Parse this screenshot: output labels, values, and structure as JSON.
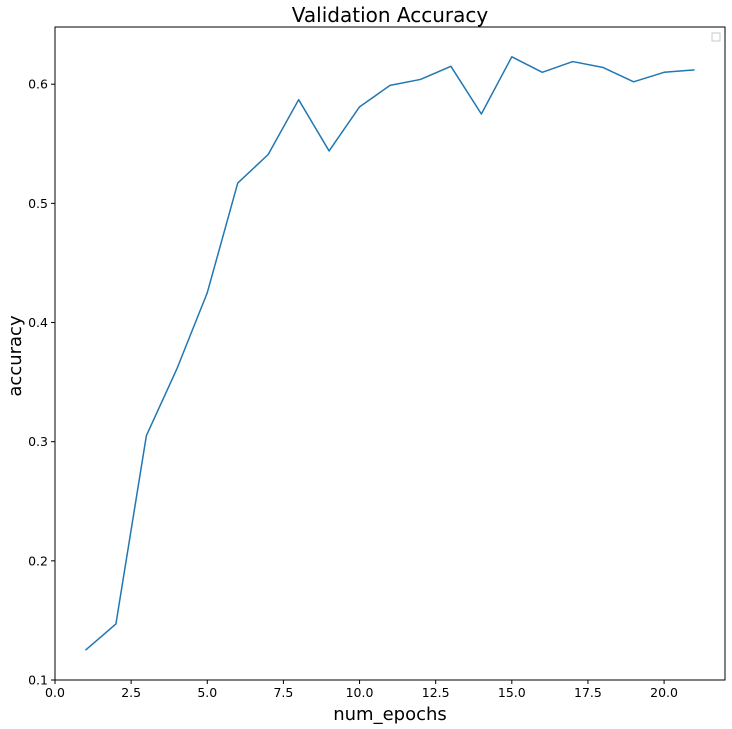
{
  "chart_data": {
    "type": "line",
    "title": "Validation Accuracy",
    "xlabel": "num_epochs",
    "ylabel": "accuracy",
    "xlim": [
      0.0,
      22.0
    ],
    "ylim": [
      0.1,
      0.648
    ],
    "x_ticks": [
      0.0,
      2.5,
      5.0,
      7.5,
      10.0,
      12.5,
      15.0,
      17.5,
      20.0
    ],
    "x_tick_labels": [
      "0.0",
      "2.5",
      "5.0",
      "7.5",
      "10.0",
      "12.5",
      "15.0",
      "17.5",
      "20.0"
    ],
    "y_ticks": [
      0.1,
      0.2,
      0.3,
      0.4,
      0.5,
      0.6
    ],
    "y_tick_labels": [
      "0.1",
      "0.2",
      "0.3",
      "0.4",
      "0.5",
      "0.6"
    ],
    "grid": false,
    "legend": {
      "placement": "top-right",
      "entries": []
    },
    "series": [
      {
        "color": "#1f77b4",
        "x": [
          1,
          2,
          3,
          4,
          5,
          6,
          7,
          8,
          9,
          10,
          11,
          12,
          13,
          14,
          15,
          16,
          17,
          18,
          19,
          20,
          21
        ],
        "y": [
          0.125,
          0.147,
          0.305,
          0.361,
          0.425,
          0.517,
          0.541,
          0.587,
          0.544,
          0.581,
          0.599,
          0.604,
          0.615,
          0.575,
          0.623,
          0.61,
          0.619,
          0.614,
          0.602,
          0.61,
          0.612
        ]
      }
    ]
  }
}
